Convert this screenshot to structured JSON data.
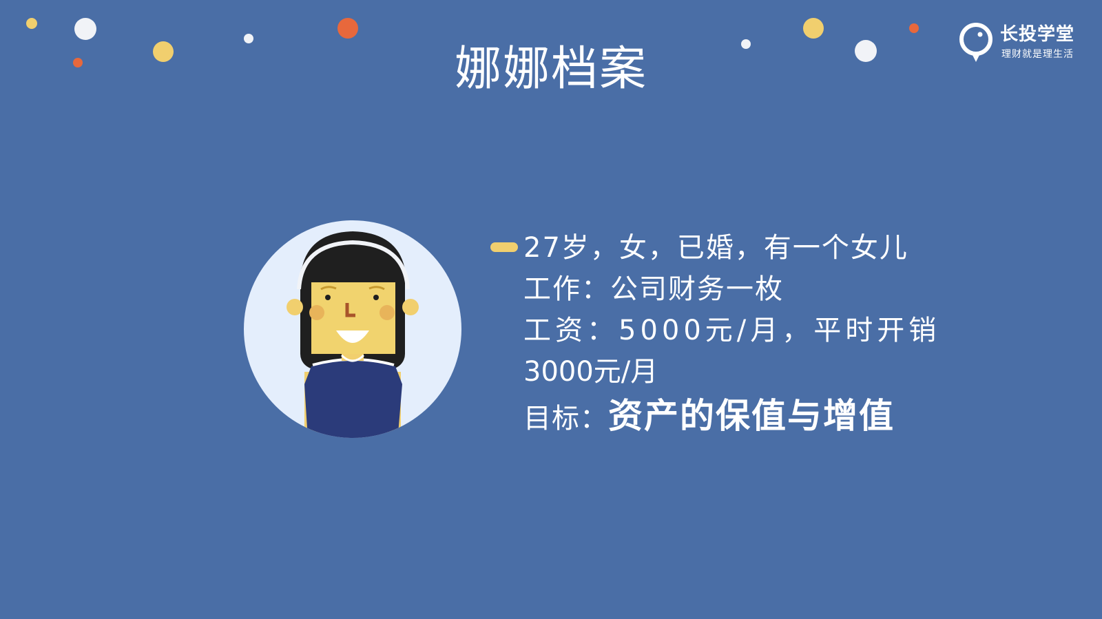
{
  "slide": {
    "title": "娜娜档案",
    "background_color": "#4a6ea6",
    "accent_colors": {
      "yellow": "#f1cf6e",
      "orange": "#e8683c",
      "white": "#f1f3f7",
      "navy": "#2b3b7a"
    }
  },
  "logo": {
    "icon": "lightbulb-icon",
    "name": "长投学堂",
    "slogan": "理财就是理生活"
  },
  "avatar": {
    "icon": "girl-avatar-icon"
  },
  "profile": {
    "line1": "27岁，女，已婚，有一个女儿",
    "line2": "工作：公司财务一枚",
    "line3": "工资：5000元/月，平时开销",
    "line4": "3000元/月",
    "goal_label": "目标：",
    "goal_value": "资产的保值与增值"
  }
}
